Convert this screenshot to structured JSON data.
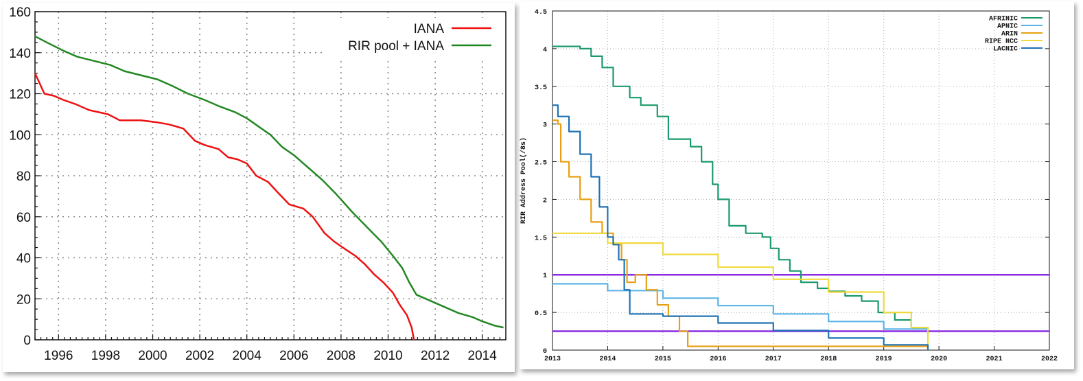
{
  "chart_data": [
    {
      "type": "line",
      "title": "",
      "xlabel": "",
      "ylabel": "",
      "xlim": [
        1995,
        2015
      ],
      "ylim": [
        0,
        160
      ],
      "x_ticks": [
        "1996",
        "1998",
        "2000",
        "2002",
        "2004",
        "2006",
        "2008",
        "2010",
        "2012",
        "2014"
      ],
      "y_ticks": [
        "0",
        "20",
        "40",
        "60",
        "80",
        "100",
        "120",
        "140",
        "160"
      ],
      "grid": true,
      "legend": "top-right",
      "series": [
        {
          "name": "IANA",
          "color": "#ee1111",
          "x": [
            1995,
            1995.4,
            1995.8,
            1996.2,
            1996.7,
            1997.3,
            1998.1,
            1998.6,
            1999.5,
            2000.2,
            2000.7,
            2001.3,
            2001.8,
            2002.2,
            2002.8,
            2003.2,
            2003.6,
            2004.0,
            2004.4,
            2004.9,
            2005.3,
            2005.8,
            2006.4,
            2006.8,
            2007.3,
            2007.7,
            2008.2,
            2008.6,
            2009.0,
            2009.4,
            2009.8,
            2010.2,
            2010.5,
            2010.8,
            2011.0,
            2011.1
          ],
          "y": [
            130,
            120,
            119,
            117,
            115,
            112,
            110,
            107,
            107,
            106,
            105,
            103,
            97,
            95,
            93,
            89,
            88,
            86,
            80,
            77,
            72,
            66,
            64,
            60,
            52,
            48,
            44,
            41,
            37,
            32,
            28,
            23,
            17,
            12,
            6,
            0
          ]
        },
        {
          "name": "RIR pool + IANA",
          "color": "#228822",
          "x": [
            1995,
            1995.5,
            1996.2,
            1996.8,
            1997.5,
            1998.2,
            1998.8,
            1999.5,
            2000.2,
            2000.8,
            2001.5,
            2002.2,
            2002.8,
            2003.5,
            2004.0,
            2004.5,
            2005.0,
            2005.5,
            2006.0,
            2006.6,
            2007.2,
            2007.8,
            2008.5,
            2009.1,
            2009.7,
            2010.2,
            2010.6,
            2010.9,
            2011.2,
            2011.8,
            2012.4,
            2013.0,
            2013.6,
            2014.0,
            2014.5,
            2014.9
          ],
          "y": [
            148,
            145,
            141,
            138,
            136,
            134,
            131,
            129,
            127,
            124,
            120,
            117,
            114,
            111,
            108,
            104,
            100,
            94,
            90,
            84,
            78,
            71,
            62,
            55,
            48,
            41,
            35,
            28,
            22,
            19,
            16,
            13,
            11,
            9,
            7,
            6
          ]
        }
      ]
    },
    {
      "type": "line",
      "title": "",
      "xlabel": "",
      "ylabel": "RIR Address Pool(/8s)",
      "xlim": [
        2013,
        2022
      ],
      "ylim": [
        0,
        4.5
      ],
      "x_ticks": [
        "2013",
        "2014",
        "2015",
        "2016",
        "2017",
        "2018",
        "2019",
        "2020",
        "2021",
        "2022"
      ],
      "y_ticks": [
        "0",
        "0.5",
        "1",
        "1.5",
        "2",
        "2.5",
        "3",
        "3.5",
        "4",
        "4.5"
      ],
      "grid": true,
      "legend": "top-right",
      "reference_lines": [
        {
          "y": 1,
          "color": "#8a2be2"
        },
        {
          "y": 0.25,
          "color": "#8a2be2"
        }
      ],
      "series": [
        {
          "name": "AFRINIC",
          "color": "#1a9a6a",
          "x": [
            2013.0,
            2013.5,
            2013.7,
            2013.9,
            2014.1,
            2014.4,
            2014.6,
            2014.9,
            2015.1,
            2015.5,
            2015.7,
            2015.9,
            2016.0,
            2016.2,
            2016.5,
            2016.8,
            2016.95,
            2017.1,
            2017.3,
            2017.5,
            2017.8,
            2018.0,
            2018.3,
            2018.6,
            2018.9,
            2019.2,
            2019.5,
            2019.8
          ],
          "y": [
            4.03,
            4.0,
            3.9,
            3.75,
            3.5,
            3.35,
            3.25,
            3.1,
            2.8,
            2.7,
            2.5,
            2.2,
            2.0,
            1.65,
            1.55,
            1.5,
            1.35,
            1.2,
            1.05,
            0.9,
            0.82,
            0.78,
            0.72,
            0.65,
            0.5,
            0.4,
            0.3,
            0.2
          ]
        },
        {
          "name": "APNIC",
          "color": "#5ab4e6",
          "x": [
            2013.0,
            2014.0,
            2015.0,
            2016.0,
            2017.0,
            2018.0,
            2019.0,
            2019.8
          ],
          "y": [
            0.88,
            0.79,
            0.69,
            0.59,
            0.48,
            0.38,
            0.28,
            0.2
          ]
        },
        {
          "name": "ARIN",
          "color": "#e8a013",
          "x": [
            2013.0,
            2013.1,
            2013.15,
            2013.3,
            2013.5,
            2013.7,
            2013.9,
            2014.1,
            2014.25,
            2014.35,
            2014.5,
            2014.7,
            2014.9,
            2015.1,
            2015.3,
            2015.45,
            2016.0,
            2017.0,
            2018.0,
            2019.0,
            2019.8
          ],
          "y": [
            3.05,
            3.0,
            2.5,
            2.3,
            2.0,
            1.7,
            1.55,
            1.4,
            1.2,
            0.9,
            1.0,
            0.8,
            0.6,
            0.45,
            0.25,
            0.05,
            0.05,
            0.05,
            0.05,
            0.05,
            0.05
          ]
        },
        {
          "name": "RIPE NCC",
          "color": "#f0d93a",
          "x": [
            2013.0,
            2014.0,
            2015.0,
            2016.0,
            2017.0,
            2018.0,
            2019.0,
            2019.5,
            2019.8
          ],
          "y": [
            1.55,
            1.42,
            1.27,
            1.1,
            0.94,
            0.77,
            0.5,
            0.3,
            0.05
          ]
        },
        {
          "name": "LACNIC",
          "color": "#1e72b5",
          "x": [
            2013.0,
            2013.1,
            2013.3,
            2013.5,
            2013.7,
            2013.85,
            2014.0,
            2014.1,
            2014.2,
            2014.3,
            2014.4,
            2015.0,
            2016.0,
            2017.0,
            2018.0,
            2019.0,
            2019.8
          ],
          "y": [
            3.25,
            3.1,
            2.9,
            2.6,
            2.3,
            1.9,
            1.5,
            1.4,
            1.2,
            0.8,
            0.48,
            0.45,
            0.36,
            0.26,
            0.16,
            0.07,
            0.0
          ]
        }
      ]
    }
  ]
}
